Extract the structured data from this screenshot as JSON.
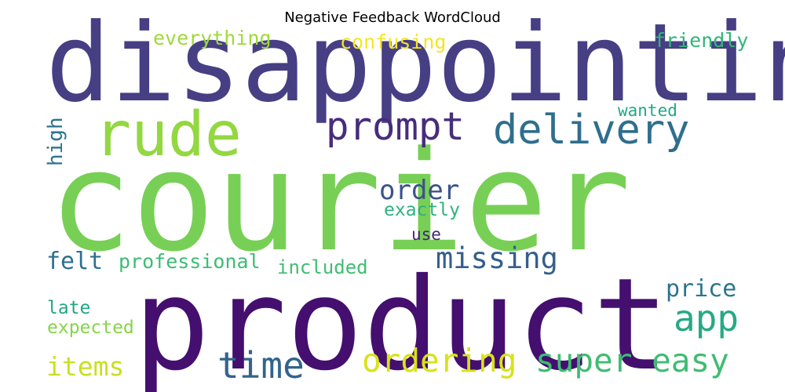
{
  "chart_data": {
    "type": "wordcloud",
    "title": "Negative Feedback WordCloud",
    "words": [
      {
        "text": "courier",
        "weight": 1.0,
        "color": "#77d055"
      },
      {
        "text": "product",
        "weight": 0.96,
        "color": "#440f6e"
      },
      {
        "text": "disappointing",
        "weight": 0.82,
        "color": "#463f84"
      },
      {
        "text": "rude",
        "weight": 0.46,
        "color": "#93d741"
      },
      {
        "text": "delivery",
        "weight": 0.31,
        "color": "#2f6e8e"
      },
      {
        "text": "prompt",
        "weight": 0.29,
        "color": "#472d7b"
      },
      {
        "text": "time",
        "weight": 0.27,
        "color": "#33648d"
      },
      {
        "text": "app",
        "weight": 0.27,
        "color": "#27a985"
      },
      {
        "text": "ordering",
        "weight": 0.24,
        "color": "#d8e219"
      },
      {
        "text": "super easy",
        "weight": 0.24,
        "color": "#3fbc73"
      },
      {
        "text": "missing",
        "weight": 0.22,
        "color": "#355e8d"
      },
      {
        "text": "order",
        "weight": 0.2,
        "color": "#3b528b"
      },
      {
        "text": "items",
        "weight": 0.2,
        "color": "#c8e020"
      },
      {
        "text": "price",
        "weight": 0.18,
        "color": "#2b758e"
      },
      {
        "text": "felt",
        "weight": 0.18,
        "color": "#2d708e"
      },
      {
        "text": "high",
        "weight": 0.15,
        "color": "#2c738e"
      },
      {
        "text": "everything",
        "weight": 0.15,
        "color": "#9fda3a"
      },
      {
        "text": "confusing",
        "weight": 0.15,
        "color": "#f5e61e"
      },
      {
        "text": "friendly",
        "weight": 0.15,
        "color": "#32b67a"
      },
      {
        "text": "professional",
        "weight": 0.15,
        "color": "#3dbc74"
      },
      {
        "text": "included",
        "weight": 0.15,
        "color": "#40bd72"
      },
      {
        "text": "late",
        "weight": 0.14,
        "color": "#21a685"
      },
      {
        "text": "expected",
        "weight": 0.14,
        "color": "#86d549"
      },
      {
        "text": "exactly",
        "weight": 0.14,
        "color": "#2db27d"
      },
      {
        "text": "wanted",
        "weight": 0.12,
        "color": "#22a884"
      },
      {
        "text": "use",
        "weight": 0.12,
        "color": "#482576"
      }
    ]
  }
}
